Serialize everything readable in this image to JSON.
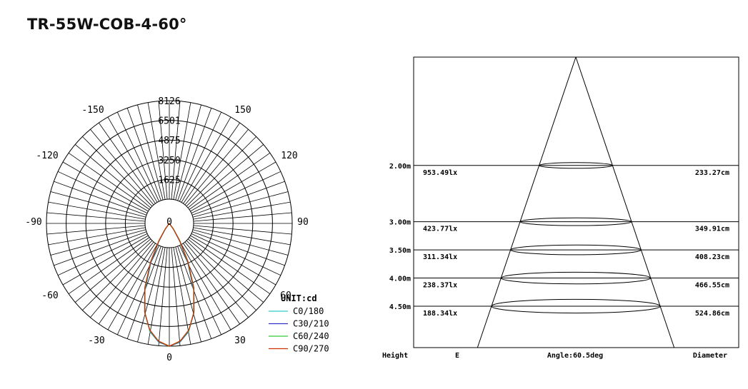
{
  "title": "TR-55W-COB-4-60°",
  "chart_data": [
    {
      "type": "polar",
      "unit_label": "UNIT:cd",
      "radial_ticks": [
        "1625",
        "3250",
        "4875",
        "6501",
        "8126"
      ],
      "radial_max": 8126,
      "center_label": "0",
      "angle_labels": [
        "-150",
        "150",
        "-120",
        "120",
        "-90",
        "90",
        "-60",
        "60",
        "-30",
        "30",
        "0"
      ],
      "series": [
        {
          "name": "C0/180",
          "color": "#33cccc",
          "angle_deg": [
            0,
            5,
            10,
            15,
            20,
            25,
            30,
            35,
            40
          ],
          "values": [
            8126,
            7900,
            7300,
            6200,
            4700,
            2900,
            1400,
            500,
            0
          ]
        },
        {
          "name": "C30/210",
          "color": "#3333cc",
          "angle_deg": [
            0,
            5,
            10,
            15,
            20,
            25,
            30,
            35,
            40
          ],
          "values": [
            8126,
            7880,
            7250,
            6150,
            4650,
            2880,
            1380,
            480,
            0
          ]
        },
        {
          "name": "C60/240",
          "color": "#33cc33",
          "angle_deg": [
            0,
            5,
            10,
            15,
            20,
            25,
            30,
            35,
            40
          ],
          "values": [
            8126,
            7850,
            7200,
            6100,
            4600,
            2850,
            1350,
            460,
            0
          ]
        },
        {
          "name": "C90/270",
          "color": "#cc3300",
          "angle_deg": [
            0,
            5,
            10,
            15,
            20,
            25,
            30,
            35,
            40
          ],
          "values": [
            8126,
            7820,
            7150,
            6050,
            4550,
            2800,
            1300,
            430,
            0
          ]
        }
      ]
    },
    {
      "type": "table",
      "headers": [
        "Height",
        "E",
        "Angle:60.5deg",
        "Diameter"
      ],
      "rows": [
        {
          "height": "2.00m",
          "e": "953.49lx",
          "diameter": "233.27cm"
        },
        {
          "height": "3.00m",
          "e": "423.77lx",
          "diameter": "349.91cm"
        },
        {
          "height": "3.50m",
          "e": "311.34lx",
          "diameter": "408.23cm"
        },
        {
          "height": "4.00m",
          "e": "238.37lx",
          "diameter": "466.55cm"
        },
        {
          "height": "4.50m",
          "e": "188.34lx",
          "diameter": "524.86cm"
        }
      ],
      "height_values": [
        2.0,
        3.0,
        3.5,
        4.0,
        4.5
      ],
      "beam_angle_deg": 60.5
    }
  ]
}
